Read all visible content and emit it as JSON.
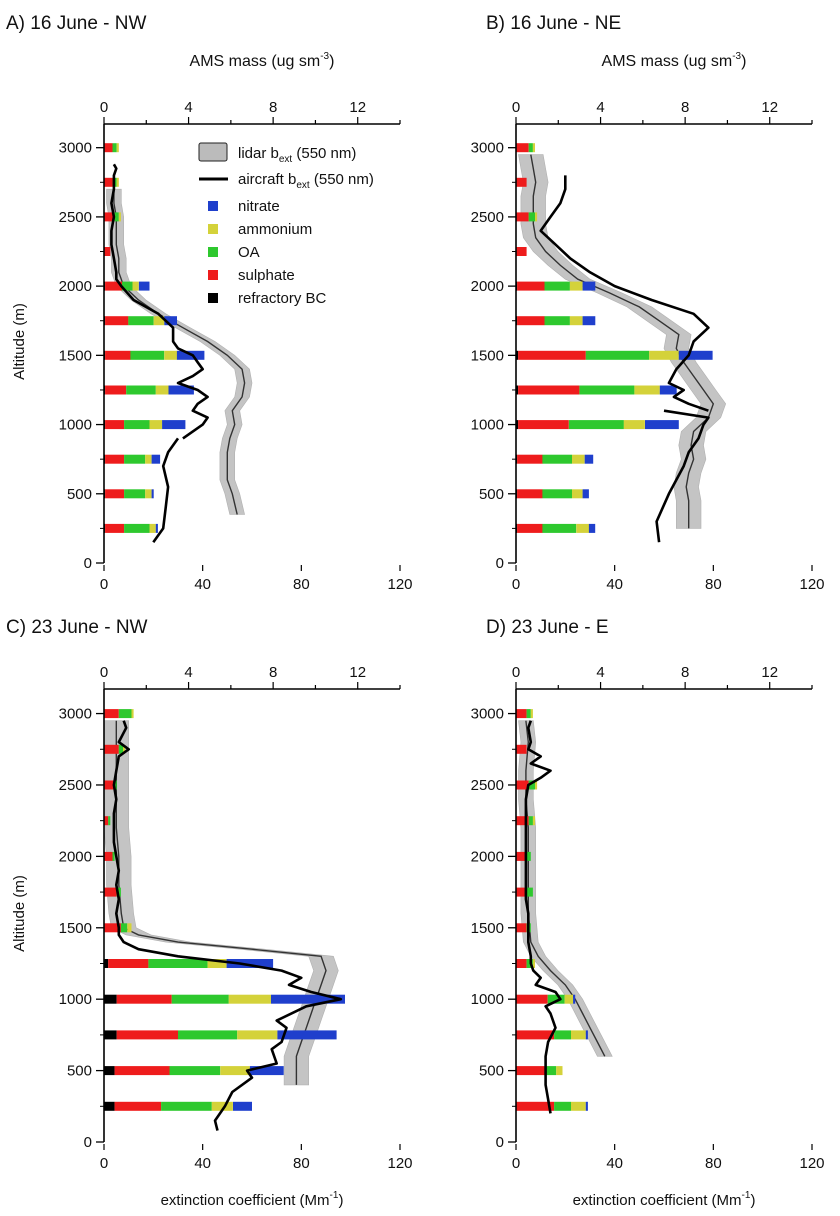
{
  "legend": {
    "lidar_label": "lidar b",
    "lidar_sub": "ext",
    "lidar_suffix": " (550 nm)",
    "aircraft_label": "aircraft b",
    "aircraft_sub": "ext",
    "aircraft_suffix": " (550 nm)",
    "species": [
      {
        "name": "nitrate",
        "color": "#1f3fcc"
      },
      {
        "name": "ammonium",
        "color": "#d4d23a"
      },
      {
        "name": "OA",
        "color": "#2ec82e"
      },
      {
        "name": "sulphate",
        "color": "#ee1c1c"
      },
      {
        "name": "refractory BC",
        "color": "#000000"
      }
    ]
  },
  "axes": {
    "top_label": "AMS mass (ug sm",
    "top_sup": "-3",
    "top_close": ")",
    "ylabel": "Altitude (m)",
    "xlabel": "extinction coefficient (Mm",
    "xlabel_sup": "-1",
    "xlabel_close": ")",
    "top_ticks": [
      "0",
      "4",
      "8",
      "12"
    ],
    "bottom_ticks": [
      "0",
      "40",
      "80",
      "120"
    ],
    "y_ticks": [
      "0",
      "500",
      "1000",
      "1500",
      "2000",
      "2500",
      "3000"
    ]
  },
  "chart_data": [
    {
      "type": "bar",
      "title": "A) 16 June - NW",
      "bottom_axis": {
        "range": [
          0,
          120
        ]
      },
      "top_axis": {
        "range": [
          0,
          14
        ]
      },
      "y_range": [
        0,
        3200
      ],
      "bars": [
        {
          "alt": 250,
          "bc": 0.05,
          "sulphate": 0.9,
          "oa": 1.2,
          "ammonium": 0.3,
          "nitrate": 0.1
        },
        {
          "alt": 500,
          "bc": 0.05,
          "sulphate": 0.9,
          "oa": 1.0,
          "ammonium": 0.3,
          "nitrate": 0.1
        },
        {
          "alt": 750,
          "bc": 0.05,
          "sulphate": 0.9,
          "oa": 1.0,
          "ammonium": 0.3,
          "nitrate": 0.4
        },
        {
          "alt": 1000,
          "bc": 0.05,
          "sulphate": 0.9,
          "oa": 1.2,
          "ammonium": 0.6,
          "nitrate": 1.1
        },
        {
          "alt": 1250,
          "bc": 0.05,
          "sulphate": 1.0,
          "oa": 1.4,
          "ammonium": 0.6,
          "nitrate": 1.2
        },
        {
          "alt": 1500,
          "bc": 0.05,
          "sulphate": 1.2,
          "oa": 1.6,
          "ammonium": 0.6,
          "nitrate": 1.3
        },
        {
          "alt": 1750,
          "bc": 0.05,
          "sulphate": 1.1,
          "oa": 1.2,
          "ammonium": 0.5,
          "nitrate": 0.6
        },
        {
          "alt": 2000,
          "bc": 0.05,
          "sulphate": 0.8,
          "oa": 0.5,
          "ammonium": 0.3,
          "nitrate": 0.5
        },
        {
          "alt": 2250,
          "bc": 0.0,
          "sulphate": 0.3,
          "oa": 0.0,
          "ammonium": 0.0,
          "nitrate": 0.0
        },
        {
          "alt": 2500,
          "bc": 0.0,
          "sulphate": 0.5,
          "oa": 0.2,
          "ammonium": 0.1,
          "nitrate": 0.0
        },
        {
          "alt": 2750,
          "bc": 0.0,
          "sulphate": 0.4,
          "oa": 0.2,
          "ammonium": 0.1,
          "nitrate": 0.0
        },
        {
          "alt": 3000,
          "bc": 0.0,
          "sulphate": 0.4,
          "oa": 0.2,
          "ammonium": 0.1,
          "nitrate": 0.0
        }
      ],
      "lidar": {
        "alt": [
          350,
          500,
          600,
          700,
          800,
          900,
          1000,
          1100,
          1200,
          1300,
          1400,
          1500,
          1600,
          1700,
          1800,
          1900,
          2000,
          2100,
          2200,
          2300,
          2400,
          2500,
          2600,
          2700
        ],
        "value": [
          54,
          52,
          50,
          50,
          50,
          51,
          53,
          52,
          56,
          57,
          56,
          50,
          42,
          32,
          22,
          14,
          8,
          6,
          6,
          5,
          5,
          5,
          4,
          4
        ],
        "spread": 3
      },
      "aircraft": [
        {
          "alt": [
            150,
            250,
            400,
            550,
            700,
            800,
            900
          ],
          "value": [
            20,
            24,
            25,
            26,
            24,
            26,
            30
          ]
        },
        {
          "alt": [
            900,
            1000,
            1050,
            1100,
            1150,
            1200,
            1250,
            1300,
            1350,
            1400,
            1450,
            1500,
            1550,
            1600,
            1700,
            1800,
            1900,
            2000,
            2050,
            2100,
            2200,
            2300,
            2400,
            2500,
            2600,
            2700,
            2800,
            2850,
            2880
          ],
          "value": [
            32,
            40,
            42,
            36,
            38,
            42,
            38,
            30,
            36,
            40,
            38,
            36,
            30,
            28,
            28,
            22,
            12,
            7,
            5,
            5,
            4,
            3,
            3,
            4,
            3,
            4,
            4,
            5,
            4
          ]
        }
      ]
    },
    {
      "type": "bar",
      "title": "B) 16 June - NE",
      "bottom_axis": {
        "range": [
          0,
          120
        ]
      },
      "top_axis": {
        "range": [
          0,
          14
        ]
      },
      "y_range": [
        0,
        3200
      ],
      "bars": [
        {
          "alt": 250,
          "bc": 0.05,
          "sulphate": 1.2,
          "oa": 1.6,
          "ammonium": 0.6,
          "nitrate": 0.3
        },
        {
          "alt": 500,
          "bc": 0.05,
          "sulphate": 1.2,
          "oa": 1.4,
          "ammonium": 0.5,
          "nitrate": 0.3
        },
        {
          "alt": 750,
          "bc": 0.05,
          "sulphate": 1.2,
          "oa": 1.4,
          "ammonium": 0.6,
          "nitrate": 0.4
        },
        {
          "alt": 1000,
          "bc": 0.1,
          "sulphate": 2.4,
          "oa": 2.6,
          "ammonium": 1.0,
          "nitrate": 1.6
        },
        {
          "alt": 1250,
          "bc": 0.1,
          "sulphate": 2.9,
          "oa": 2.6,
          "ammonium": 1.2,
          "nitrate": 0.8
        },
        {
          "alt": 1500,
          "bc": 0.1,
          "sulphate": 3.2,
          "oa": 3.0,
          "ammonium": 1.4,
          "nitrate": 1.6
        },
        {
          "alt": 1750,
          "bc": 0.05,
          "sulphate": 1.3,
          "oa": 1.2,
          "ammonium": 0.6,
          "nitrate": 0.6
        },
        {
          "alt": 2000,
          "bc": 0.05,
          "sulphate": 1.3,
          "oa": 1.2,
          "ammonium": 0.6,
          "nitrate": 0.6
        },
        {
          "alt": 2250,
          "bc": 0.0,
          "sulphate": 0.5,
          "oa": 0.0,
          "ammonium": 0.0,
          "nitrate": 0.0
        },
        {
          "alt": 2500,
          "bc": 0.0,
          "sulphate": 0.6,
          "oa": 0.3,
          "ammonium": 0.1,
          "nitrate": 0.0
        },
        {
          "alt": 2750,
          "bc": 0.0,
          "sulphate": 0.5,
          "oa": 0.0,
          "ammonium": 0.0,
          "nitrate": 0.0
        },
        {
          "alt": 3000,
          "bc": 0.0,
          "sulphate": 0.6,
          "oa": 0.2,
          "ammonium": 0.1,
          "nitrate": 0.0
        }
      ],
      "lidar": {
        "alt": [
          250,
          350,
          450,
          550,
          650,
          750,
          850,
          950,
          1050,
          1150,
          1250,
          1350,
          1450,
          1550,
          1650,
          1750,
          1850,
          1950,
          2050,
          2150,
          2250,
          2350,
          2450,
          2550,
          2650,
          2750,
          2850,
          2950
        ],
        "value": [
          70,
          70,
          70,
          69,
          70,
          72,
          71,
          72,
          78,
          80,
          76,
          72,
          68,
          65,
          66,
          58,
          50,
          38,
          25,
          18,
          12,
          8,
          7,
          7,
          7,
          8,
          7,
          6
        ],
        "spread": 5
      },
      "aircraft": [
        {
          "alt": [
            150,
            300,
            500,
            700,
            800,
            900,
            1000,
            1050,
            1100
          ],
          "value": [
            58,
            57,
            62,
            68,
            70,
            74,
            76,
            78,
            60
          ]
        },
        {
          "alt": [
            1100,
            1150,
            1200,
            1250,
            1300,
            1400,
            1500,
            1600,
            1700,
            1800,
            1900,
            2000,
            2100,
            2200,
            2300,
            2400,
            2500,
            2600,
            2700,
            2800
          ],
          "value": [
            78,
            70,
            64,
            68,
            62,
            65,
            70,
            72,
            78,
            72,
            55,
            40,
            30,
            22,
            16,
            10,
            14,
            18,
            20,
            20
          ]
        }
      ]
    },
    {
      "type": "bar",
      "title": "C) 23 June - NW",
      "bottom_axis": {
        "range": [
          0,
          120
        ]
      },
      "top_axis": {
        "range": [
          0,
          14
        ]
      },
      "y_range": [
        0,
        3200
      ],
      "bars": [
        {
          "alt": 250,
          "bc": 0.5,
          "sulphate": 2.2,
          "oa": 2.4,
          "ammonium": 1.0,
          "nitrate": 0.9
        },
        {
          "alt": 500,
          "bc": 0.5,
          "sulphate": 2.6,
          "oa": 2.4,
          "ammonium": 1.4,
          "nitrate": 1.6
        },
        {
          "alt": 750,
          "bc": 0.6,
          "sulphate": 2.9,
          "oa": 2.8,
          "ammonium": 1.9,
          "nitrate": 2.8
        },
        {
          "alt": 1000,
          "bc": 0.6,
          "sulphate": 2.6,
          "oa": 2.7,
          "ammonium": 2.0,
          "nitrate": 3.5
        },
        {
          "alt": 1250,
          "bc": 0.2,
          "sulphate": 1.9,
          "oa": 2.8,
          "ammonium": 0.9,
          "nitrate": 2.2
        },
        {
          "alt": 1500,
          "bc": 0.0,
          "sulphate": 0.8,
          "oa": 0.3,
          "ammonium": 0.2,
          "nitrate": 0.0
        },
        {
          "alt": 1750,
          "bc": 0.0,
          "sulphate": 0.6,
          "oa": 0.2,
          "ammonium": 0.0,
          "nitrate": 0.0
        },
        {
          "alt": 2000,
          "bc": 0.0,
          "sulphate": 0.4,
          "oa": 0.1,
          "ammonium": 0.0,
          "nitrate": 0.0
        },
        {
          "alt": 2250,
          "bc": 0.0,
          "sulphate": 0.2,
          "oa": 0.1,
          "ammonium": 0.0,
          "nitrate": 0.0
        },
        {
          "alt": 2500,
          "bc": 0.0,
          "sulphate": 0.5,
          "oa": 0.1,
          "ammonium": 0.0,
          "nitrate": 0.0
        },
        {
          "alt": 2750,
          "bc": 0.0,
          "sulphate": 0.7,
          "oa": 0.2,
          "ammonium": 0.1,
          "nitrate": 0.0
        },
        {
          "alt": 3000,
          "bc": 0.0,
          "sulphate": 0.7,
          "oa": 0.6,
          "ammonium": 0.1,
          "nitrate": 0.0
        }
      ],
      "lidar": {
        "alt": [
          400,
          500,
          600,
          700,
          800,
          900,
          1000,
          1100,
          1200,
          1300,
          1350,
          1400,
          1450,
          1500,
          1600,
          1800,
          2000,
          2200,
          2400,
          2600,
          2800,
          2950
        ],
        "value": [
          78,
          78,
          78,
          80,
          82,
          84,
          86,
          88,
          90,
          88,
          60,
          30,
          14,
          8,
          7,
          6,
          6,
          5,
          5,
          5,
          5,
          5
        ],
        "spread": 5
      },
      "aircraft": [
        {
          "alt": [
            80,
            150,
            250,
            350,
            450,
            500,
            550,
            650,
            700,
            800,
            850,
            950,
            1000,
            1050,
            1100,
            1150,
            1200,
            1250,
            1300,
            1350,
            1400,
            1450,
            1500,
            1600,
            1700,
            1800,
            1900,
            2000,
            2100,
            2200,
            2300,
            2400,
            2500,
            2600,
            2700,
            2750,
            2800,
            2900,
            2950
          ],
          "value": [
            46,
            45,
            49,
            52,
            60,
            58,
            70,
            68,
            72,
            74,
            70,
            82,
            96,
            84,
            75,
            80,
            72,
            55,
            30,
            14,
            8,
            6,
            6,
            5,
            6,
            5,
            6,
            5,
            4,
            4,
            4,
            5,
            4,
            5,
            6,
            10,
            6,
            9,
            8
          ]
        }
      ]
    },
    {
      "type": "bar",
      "title": "D) 23 June - E",
      "bottom_axis": {
        "range": [
          0,
          120
        ]
      },
      "top_axis": {
        "range": [
          0,
          14
        ]
      },
      "y_range": [
        0,
        3200
      ],
      "bars": [
        {
          "alt": 250,
          "bc": 0.0,
          "sulphate": 1.8,
          "oa": 0.8,
          "ammonium": 0.7,
          "nitrate": 0.1
        },
        {
          "alt": 500,
          "bc": 0.0,
          "sulphate": 1.4,
          "oa": 0.5,
          "ammonium": 0.3,
          "nitrate": 0.0
        },
        {
          "alt": 750,
          "bc": 0.0,
          "sulphate": 1.8,
          "oa": 0.8,
          "ammonium": 0.7,
          "nitrate": 0.1
        },
        {
          "alt": 1000,
          "bc": 0.0,
          "sulphate": 1.5,
          "oa": 0.8,
          "ammonium": 0.4,
          "nitrate": 0.1
        },
        {
          "alt": 1250,
          "bc": 0.0,
          "sulphate": 0.5,
          "oa": 0.3,
          "ammonium": 0.1,
          "nitrate": 0.0
        },
        {
          "alt": 1500,
          "bc": 0.0,
          "sulphate": 0.5,
          "oa": 0.2,
          "ammonium": 0.0,
          "nitrate": 0.0
        },
        {
          "alt": 1750,
          "bc": 0.0,
          "sulphate": 0.5,
          "oa": 0.3,
          "ammonium": 0.0,
          "nitrate": 0.0
        },
        {
          "alt": 2000,
          "bc": 0.0,
          "sulphate": 0.5,
          "oa": 0.2,
          "ammonium": 0.0,
          "nitrate": 0.0
        },
        {
          "alt": 2250,
          "bc": 0.0,
          "sulphate": 0.6,
          "oa": 0.2,
          "ammonium": 0.1,
          "nitrate": 0.0
        },
        {
          "alt": 2500,
          "bc": 0.0,
          "sulphate": 0.6,
          "oa": 0.3,
          "ammonium": 0.1,
          "nitrate": 0.0
        },
        {
          "alt": 2750,
          "bc": 0.0,
          "sulphate": 0.5,
          "oa": 0.0,
          "ammonium": 0.0,
          "nitrate": 0.0
        },
        {
          "alt": 3000,
          "bc": 0.0,
          "sulphate": 0.5,
          "oa": 0.2,
          "ammonium": 0.1,
          "nitrate": 0.0
        }
      ],
      "lidar": {
        "alt": [
          600,
          700,
          800,
          900,
          1000,
          1100,
          1200,
          1300,
          1400,
          1600,
          1800,
          2000,
          2200,
          2400,
          2600,
          2800,
          2950
        ],
        "value": [
          36,
          33,
          30,
          27,
          24,
          20,
          14,
          9,
          6,
          5,
          5,
          5,
          5,
          4,
          4,
          5,
          4
        ],
        "spread": 3
      },
      "aircraft": [
        {
          "alt": [
            200,
            300,
            400,
            500,
            600,
            700,
            800,
            900,
            950,
            1000,
            1050,
            1100,
            1150,
            1200,
            1250,
            1300,
            1400,
            1500,
            1600,
            1700,
            1800,
            1900,
            2000,
            2100,
            2200,
            2300,
            2400,
            2500,
            2550,
            2600,
            2650,
            2700,
            2750,
            2800,
            2900,
            2950
          ],
          "value": [
            14,
            13,
            12,
            12,
            12,
            13,
            16,
            14,
            12,
            18,
            16,
            8,
            10,
            7,
            6,
            6,
            5,
            5,
            5,
            4,
            4,
            4,
            4,
            4,
            4,
            4,
            4,
            5,
            10,
            14,
            6,
            10,
            5,
            6,
            5,
            6
          ]
        }
      ]
    }
  ]
}
